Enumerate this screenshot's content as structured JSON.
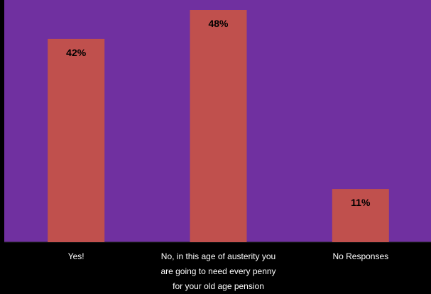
{
  "chart_data": {
    "type": "bar",
    "categories": [
      [
        "Yes!"
      ],
      [
        "No, in this age of austerity you",
        "are going to need every penny",
        "for your old age pension"
      ],
      [
        "No Responses"
      ]
    ],
    "values": [
      42,
      48,
      11
    ],
    "data_labels": [
      "42%",
      "48%",
      "11%"
    ],
    "ylim": [
      0,
      48
    ],
    "grid": false,
    "legend": "none",
    "colors": {
      "plot_background": "#7030A0",
      "page_background": "#000000",
      "bar": "#C0504D",
      "data_label": "#000000",
      "category_label": "#FFFFFF"
    }
  }
}
